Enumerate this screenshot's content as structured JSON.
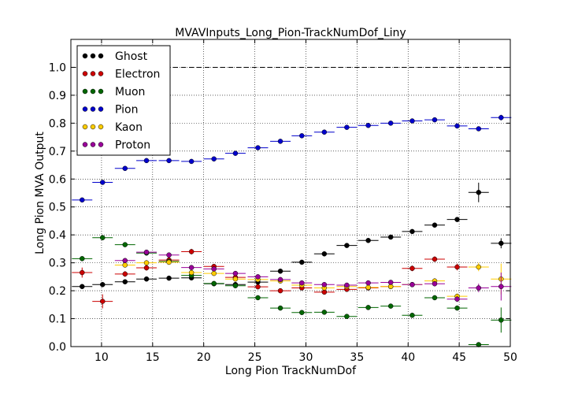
{
  "chart_data": {
    "type": "scatter",
    "title": "MVAVInputs_Long_Pion-TrackNumDof_Liny",
    "xlabel": "Long Pion TrackNumDof",
    "ylabel": "Long Pion MVA Output",
    "xlim": [
      7,
      50
    ],
    "ylim": [
      0,
      1.1
    ],
    "xticks": [
      "10",
      "15",
      "20",
      "25",
      "30",
      "35",
      "40",
      "45",
      "50"
    ],
    "yticks": [
      "0.0",
      "0.1",
      "0.2",
      "0.3",
      "0.4",
      "0.5",
      "0.6",
      "0.7",
      "0.8",
      "0.9",
      "1.0"
    ],
    "grid": true,
    "legend": "top-left",
    "reference_line": 1.0,
    "bin_half_width": 1,
    "series": [
      {
        "name": "Ghost",
        "color": "#000000",
        "x": [
          8.1,
          10.1,
          12.3,
          14.4,
          16.6,
          18.8,
          21.0,
          23.1,
          25.3,
          27.5,
          29.6,
          31.8,
          34.0,
          36.1,
          38.3,
          40.4,
          42.6,
          44.8,
          46.9,
          49.1
        ],
        "y": [
          0.215,
          0.222,
          0.232,
          0.242,
          0.245,
          0.246,
          0.225,
          0.222,
          0.231,
          0.27,
          0.302,
          0.332,
          0.362,
          0.38,
          0.392,
          0.412,
          0.435,
          0.455,
          0.552,
          0.37
        ],
        "err": [
          0.005,
          0.005,
          0.005,
          0.005,
          0.005,
          0.005,
          0.005,
          0.005,
          0.005,
          0.005,
          0.005,
          0.005,
          0.005,
          0.005,
          0.005,
          0.005,
          0.005,
          0.006,
          0.035,
          0.018
        ]
      },
      {
        "name": "Electron",
        "color": "#cc0000",
        "x": [
          8.1,
          10.1,
          12.3,
          14.4,
          16.6,
          18.8,
          21.0,
          23.1,
          25.3,
          27.5,
          29.6,
          31.8,
          34.0,
          36.1,
          38.3,
          40.4,
          42.6,
          44.8
        ],
        "y": [
          0.265,
          0.162,
          0.26,
          0.282,
          0.31,
          0.34,
          0.287,
          0.248,
          0.214,
          0.2,
          0.21,
          0.195,
          0.205,
          0.21,
          0.215,
          0.28,
          0.313,
          0.285
        ],
        "err": [
          0.018,
          0.025,
          0.01,
          0.01,
          0.01,
          0.01,
          0.008,
          0.008,
          0.008,
          0.008,
          0.008,
          0.008,
          0.008,
          0.008,
          0.008,
          0.01,
          0.01,
          0.012
        ]
      },
      {
        "name": "Muon",
        "color": "#006600",
        "x": [
          8.1,
          10.1,
          12.3,
          14.4,
          16.6,
          18.8,
          21.0,
          23.1,
          25.3,
          27.5,
          29.6,
          31.8,
          34.0,
          36.1,
          38.3,
          40.4,
          42.6,
          44.8,
          46.9,
          49.1
        ],
        "y": [
          0.315,
          0.39,
          0.365,
          0.335,
          0.305,
          0.255,
          0.226,
          0.218,
          0.175,
          0.138,
          0.122,
          0.123,
          0.108,
          0.14,
          0.145,
          0.112,
          0.175,
          0.138,
          0.007,
          0.095
        ],
        "err": [
          0.006,
          0.008,
          0.006,
          0.006,
          0.006,
          0.006,
          0.005,
          0.005,
          0.005,
          0.005,
          0.005,
          0.005,
          0.005,
          0.006,
          0.006,
          0.006,
          0.006,
          0.008,
          0.006,
          0.045
        ]
      },
      {
        "name": "Pion",
        "color": "#0000cc",
        "x": [
          8.1,
          10.1,
          12.3,
          14.4,
          16.6,
          18.8,
          21.0,
          23.1,
          25.3,
          27.5,
          29.6,
          31.8,
          34.0,
          36.1,
          38.3,
          40.4,
          42.6,
          44.8,
          46.9,
          49.1
        ],
        "y": [
          0.525,
          0.588,
          0.638,
          0.666,
          0.666,
          0.663,
          0.672,
          0.692,
          0.712,
          0.735,
          0.755,
          0.768,
          0.785,
          0.792,
          0.8,
          0.808,
          0.812,
          0.79,
          0.78,
          0.82
        ],
        "err": [
          0.004,
          0.004,
          0.003,
          0.003,
          0.003,
          0.003,
          0.003,
          0.003,
          0.003,
          0.003,
          0.003,
          0.003,
          0.003,
          0.003,
          0.003,
          0.003,
          0.003,
          0.004,
          0.005,
          0.01
        ]
      },
      {
        "name": "Kaon",
        "color": "#ffcc00",
        "x": [
          12.3,
          14.4,
          16.6,
          18.8,
          21.0,
          23.1,
          25.3,
          27.5,
          29.6,
          31.8,
          34.0,
          36.1,
          38.3,
          40.4,
          42.6,
          44.8,
          46.9,
          49.1
        ],
        "y": [
          0.292,
          0.3,
          0.302,
          0.265,
          0.262,
          0.242,
          0.24,
          0.235,
          0.22,
          0.21,
          0.215,
          0.212,
          0.215,
          0.222,
          0.235,
          0.18,
          0.285,
          0.242
        ],
        "err": [
          0.008,
          0.008,
          0.008,
          0.007,
          0.007,
          0.006,
          0.006,
          0.006,
          0.006,
          0.006,
          0.006,
          0.006,
          0.006,
          0.007,
          0.008,
          0.01,
          0.015,
          0.055
        ]
      },
      {
        "name": "Proton",
        "color": "#990099",
        "x": [
          12.3,
          14.4,
          16.6,
          18.8,
          21.0,
          23.1,
          25.3,
          27.5,
          29.6,
          31.8,
          34.0,
          36.1,
          38.3,
          40.4,
          42.6,
          44.8,
          46.9,
          49.1
        ],
        "y": [
          0.308,
          0.338,
          0.328,
          0.283,
          0.278,
          0.262,
          0.25,
          0.24,
          0.228,
          0.222,
          0.22,
          0.228,
          0.23,
          0.222,
          0.225,
          0.17,
          0.21,
          0.215
        ],
        "err": [
          0.008,
          0.008,
          0.008,
          0.007,
          0.007,
          0.006,
          0.006,
          0.006,
          0.006,
          0.006,
          0.006,
          0.006,
          0.006,
          0.007,
          0.008,
          0.01,
          0.015,
          0.05
        ]
      }
    ]
  }
}
